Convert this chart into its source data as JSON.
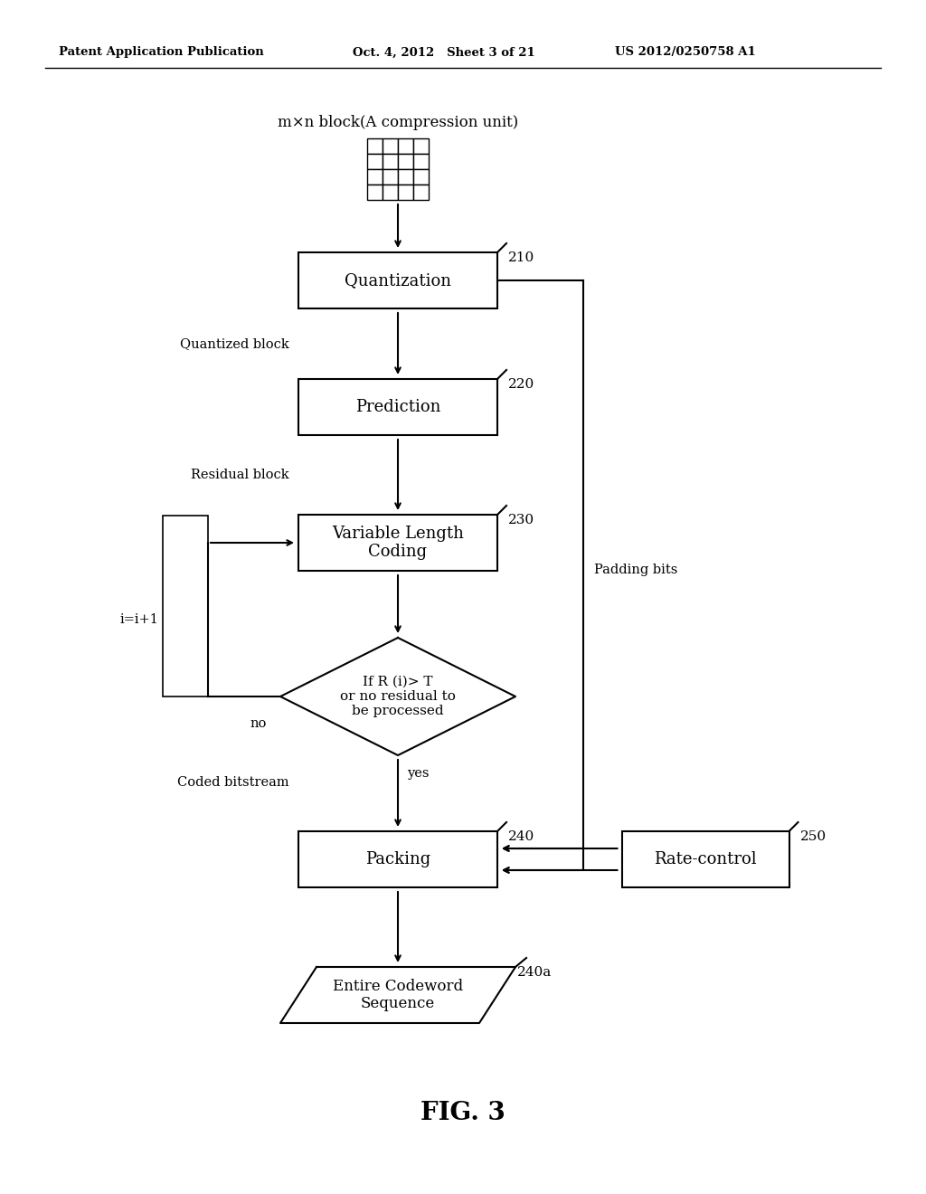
{
  "background_color": "#ffffff",
  "header_left": "Patent Application Publication",
  "header_mid": "Oct. 4, 2012   Sheet 3 of 21",
  "header_right": "US 2012/0250758 A1",
  "fig_label": "FIG. 3",
  "grid_label": "m×n block(A compression unit)"
}
